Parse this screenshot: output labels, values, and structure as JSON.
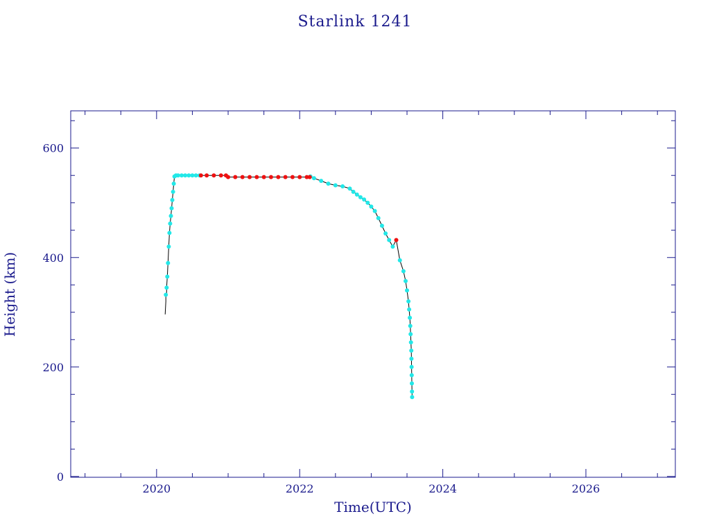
{
  "colors": {
    "axis": "#1a1a8c",
    "data_line": "#000000",
    "data_markers": "#22e8e8",
    "highlight_markers": "#ee1111"
  },
  "chart_data": {
    "type": "scatter",
    "title": "Starlink 1241",
    "xlabel": "Time(UTC)",
    "ylabel": "Height (km)",
    "xlim": [
      2018.8,
      2027.25
    ],
    "ylim": [
      -1.5,
      668
    ],
    "x_ticks": [
      2020,
      2022,
      2024,
      2026
    ],
    "y_ticks": [
      0,
      200,
      400,
      600
    ],
    "grid": false,
    "legend": "none",
    "series": [
      {
        "marker_color": "cyan",
        "x": [
          2020.13,
          2020.14,
          2020.15,
          2020.16,
          2020.17,
          2020.18,
          2020.19,
          2020.2,
          2020.21,
          2020.22,
          2020.23,
          2020.24,
          2020.25,
          2020.27,
          2020.3,
          2020.35,
          2020.4,
          2020.45,
          2020.5,
          2020.55,
          2020.6,
          2022.15,
          2022.2,
          2022.3,
          2022.4,
          2022.5,
          2022.6,
          2022.7,
          2022.75,
          2022.8,
          2022.85,
          2022.9,
          2022.95,
          2023.0,
          2023.05,
          2023.1,
          2023.15,
          2023.2,
          2023.25,
          2023.3,
          2023.4,
          2023.45,
          2023.48,
          2023.5,
          2023.52,
          2023.53,
          2023.54,
          2023.545,
          2023.55,
          2023.555,
          2023.56,
          2023.562,
          2023.564,
          2023.566,
          2023.568,
          2023.57,
          2023.572
        ],
        "y": [
          332,
          345,
          365,
          390,
          420,
          445,
          462,
          476,
          490,
          505,
          520,
          535,
          548,
          550,
          550,
          550,
          550,
          550,
          550,
          550,
          550,
          548,
          545,
          540,
          535,
          532,
          530,
          526,
          520,
          515,
          510,
          506,
          500,
          493,
          485,
          472,
          458,
          444,
          432,
          420,
          395,
          375,
          357,
          340,
          320,
          305,
          290,
          275,
          260,
          245,
          230,
          215,
          200,
          185,
          170,
          155,
          145
        ]
      },
      {
        "marker_color": "red",
        "x": [
          2020.62,
          2020.7,
          2020.8,
          2020.9,
          2020.97,
          2021.0,
          2021.1,
          2021.2,
          2021.3,
          2021.4,
          2021.5,
          2021.6,
          2021.7,
          2021.8,
          2021.9,
          2022.0,
          2022.1,
          2022.14,
          2023.35
        ],
        "y": [
          550,
          550,
          550,
          550,
          550,
          547,
          547,
          547,
          547,
          547,
          547,
          547,
          547,
          547,
          547,
          547,
          547,
          547,
          432
        ]
      }
    ],
    "line": {
      "x": [
        2020.12,
        2020.13,
        2020.14
      ],
      "y": [
        296,
        320,
        332
      ]
    }
  }
}
